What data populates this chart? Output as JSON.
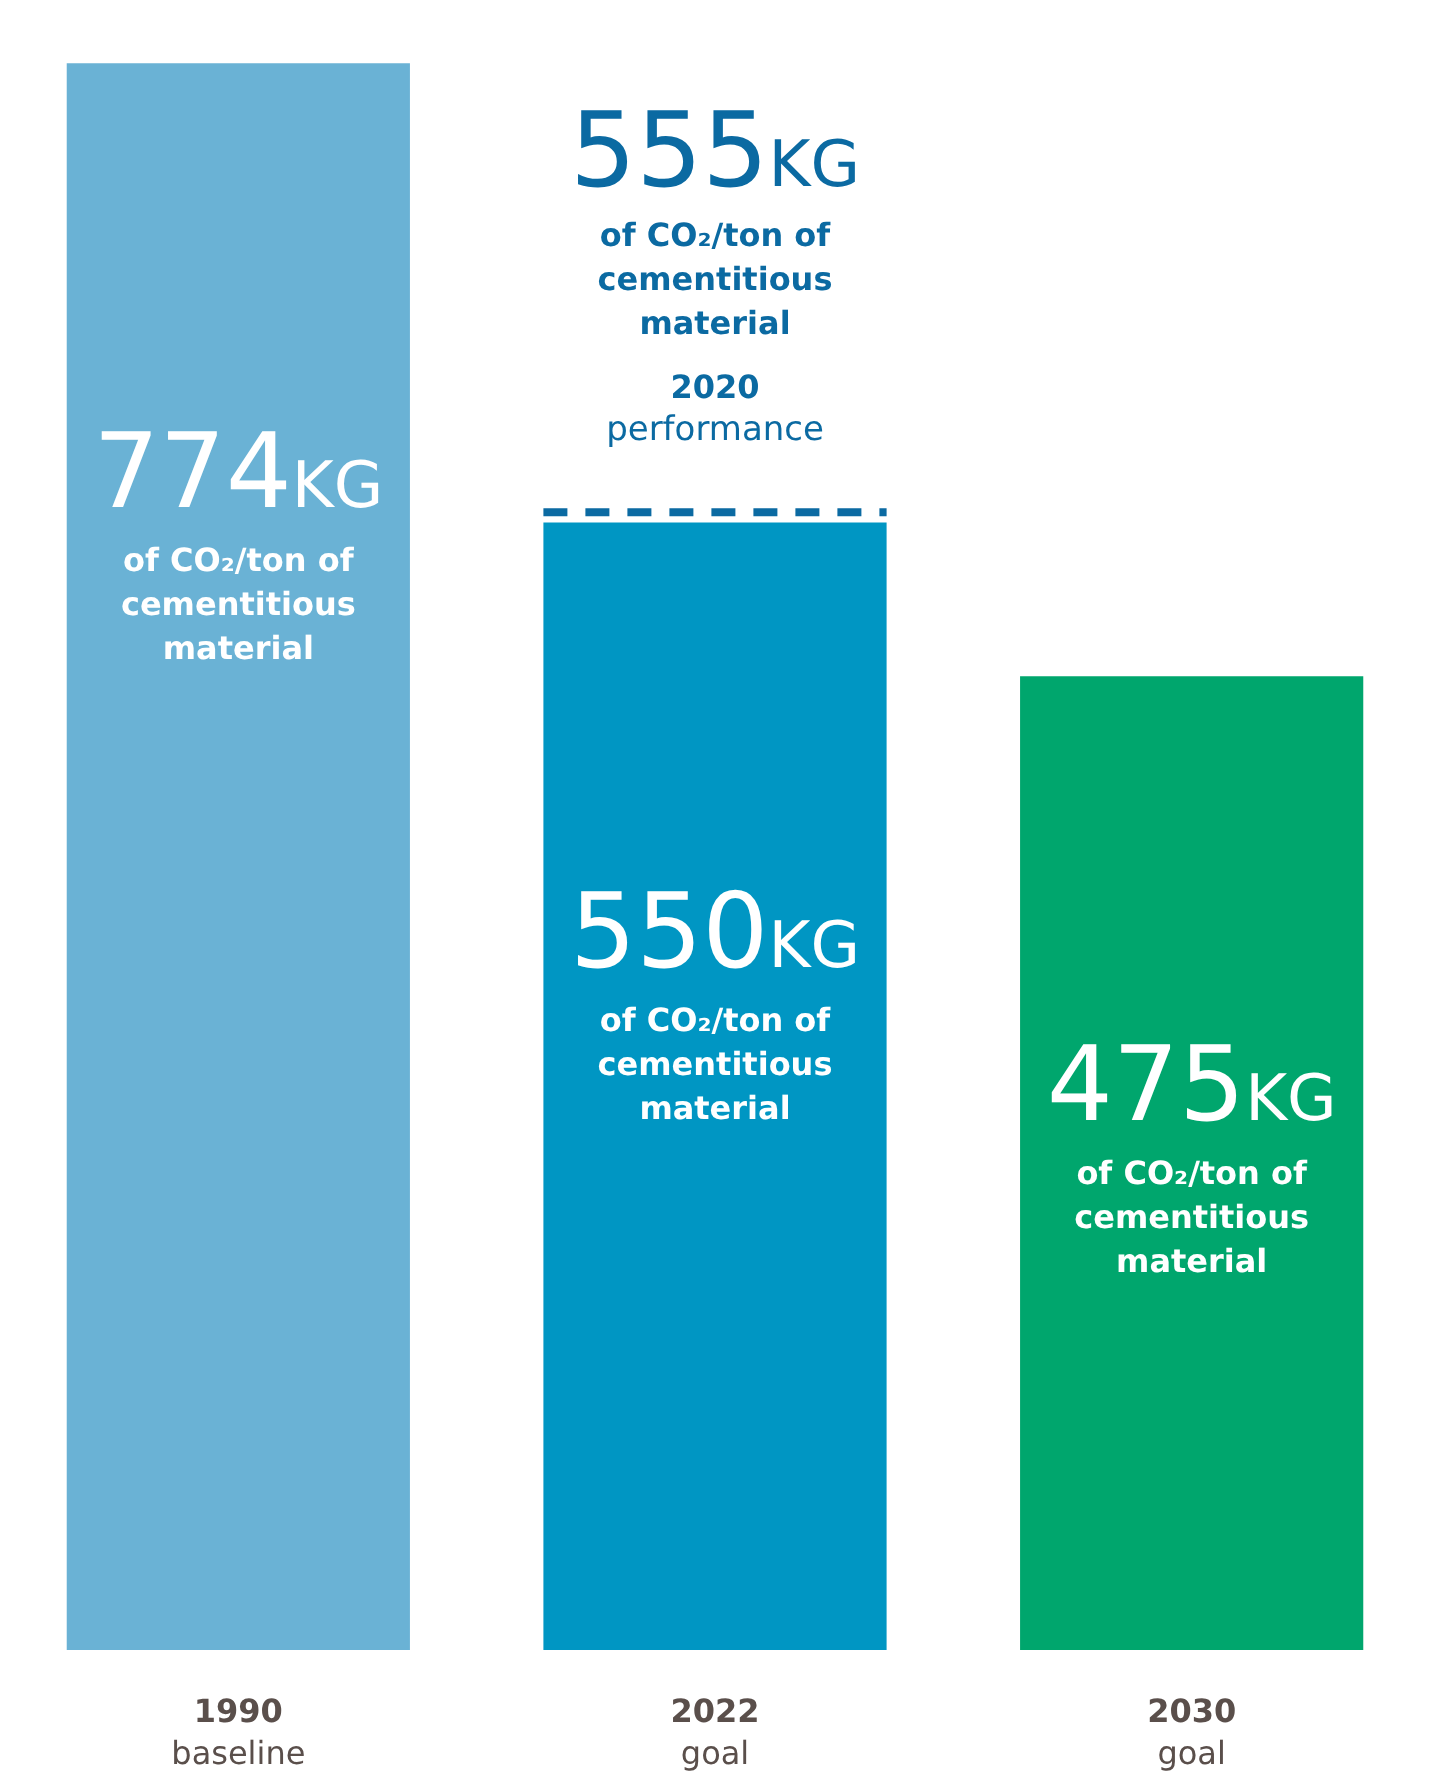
{
  "chart_data": {
    "type": "bar",
    "categories": [
      "1990\nbaseline",
      "2022\ngoal",
      "2030\ngoal"
    ],
    "values": [
      774,
      550,
      475
    ],
    "colors": [
      "#6ab2d5",
      "#0096c3",
      "#00a66d"
    ],
    "value_labels": [
      "774KG\nof CO₂/ton of\ncementitious\nmaterial",
      "550KG\nof CO₂/ton of\ncementitious\nmaterial",
      "475KG\nof CO₂/ton of\ncementitious\nmaterial"
    ],
    "ref_lines": [
      {
        "axis": "y",
        "value": 555,
        "label": "555KG\nof CO₂/ton of\ncementitious\nmaterial\n2020\nperformance",
        "color": "#0b6aa2",
        "line_style": "dashed"
      }
    ],
    "grid": false,
    "legend": false
  }
}
